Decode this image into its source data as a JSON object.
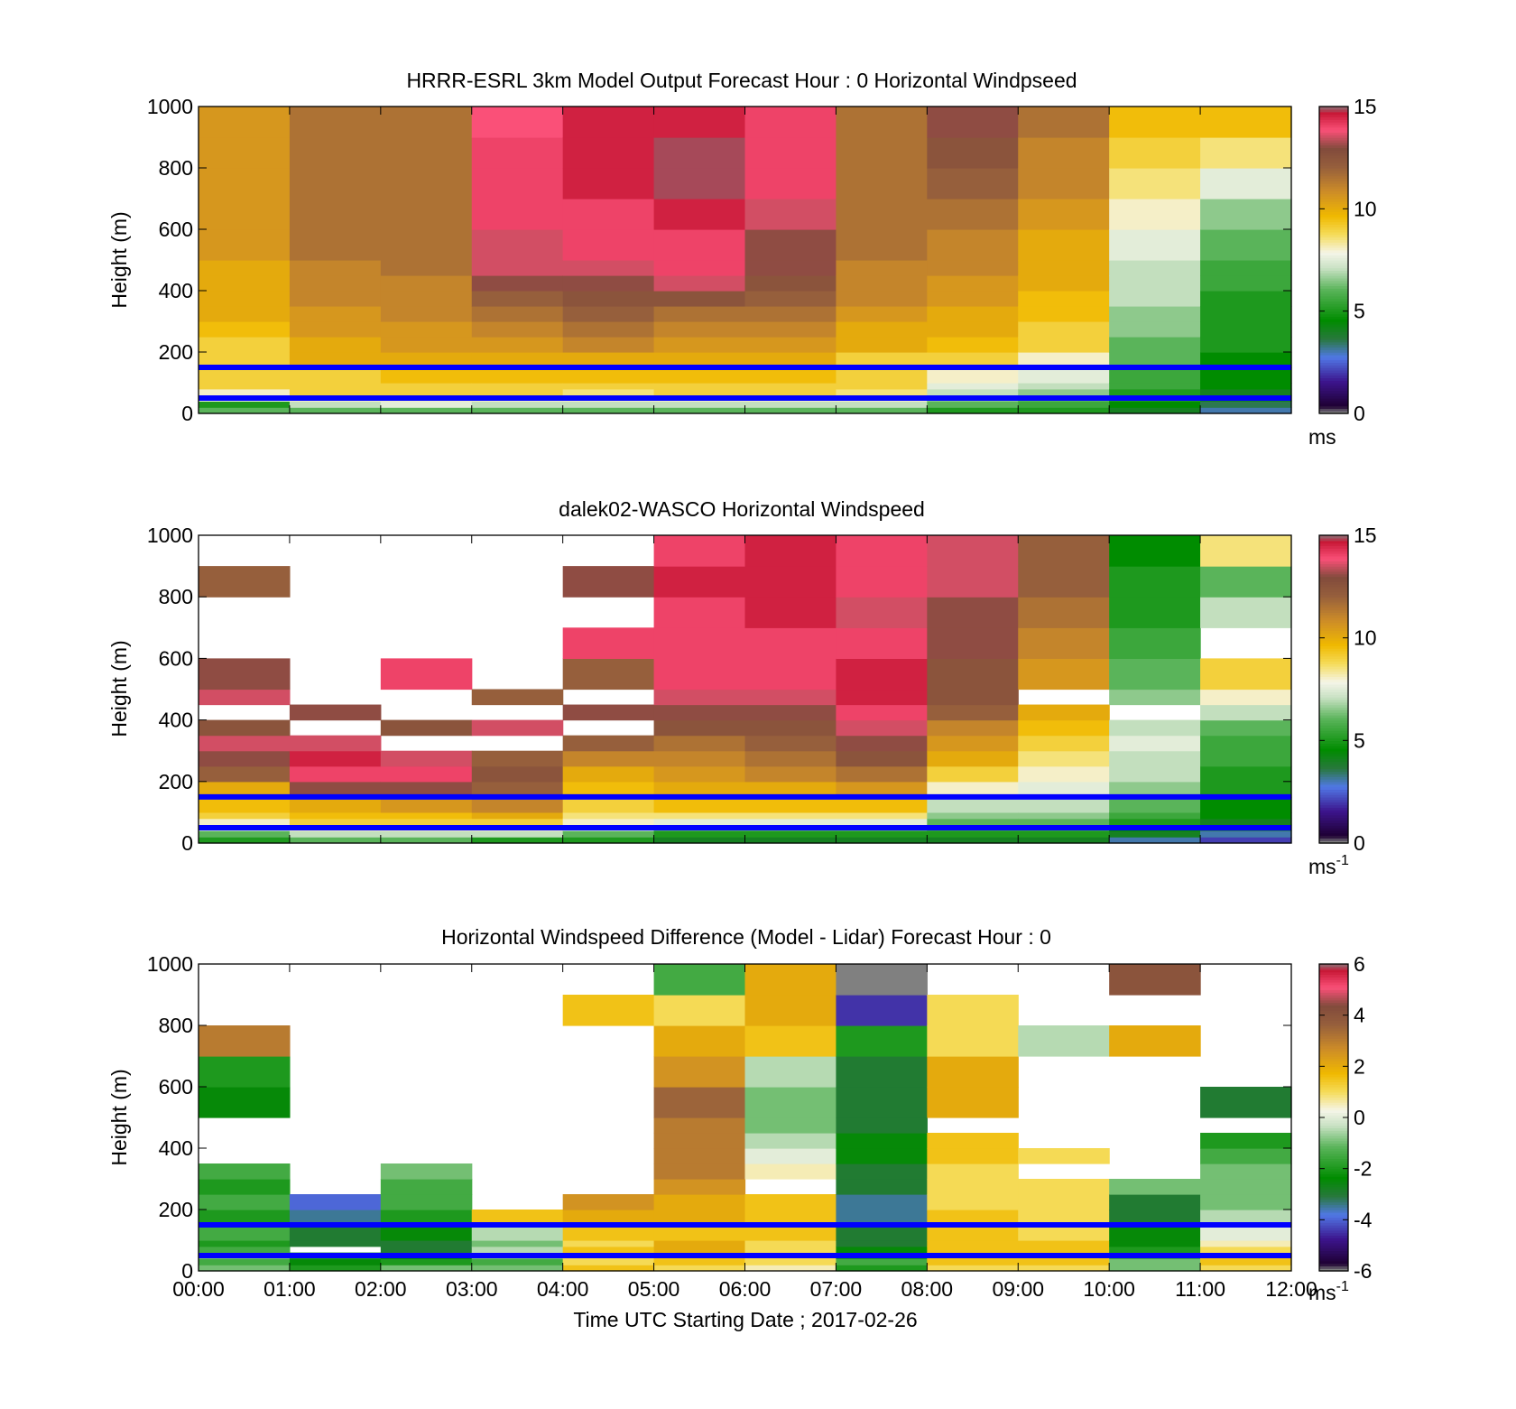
{
  "figure": {
    "xlabel": "Time UTC  Starting Date ; 2017-02-26",
    "x_ticks": [
      "00:00",
      "01:00",
      "02:00",
      "03:00",
      "04:00",
      "05:00",
      "06:00",
      "07:00",
      "08:00",
      "09:00",
      "10:00",
      "11:00",
      "12:00"
    ],
    "ylabel": "Height (m)",
    "y_ticks": [
      "0",
      "200",
      "400",
      "600",
      "800",
      "1000"
    ],
    "marker_line_color": "#0000ff"
  },
  "chart_data": [
    {
      "type": "heatmap",
      "title": "HRRR-ESRL 3km Model Output   Forecast Hour : 0 Horizontal Windpseed",
      "ylabel": "Height (m)",
      "xlim": [
        0,
        12
      ],
      "ylim": [
        0,
        1000
      ],
      "x_hours": [
        0,
        1,
        2,
        3,
        4,
        5,
        6,
        7,
        8,
        9,
        10,
        11
      ],
      "height_edges": [
        0,
        20,
        40,
        60,
        80,
        100,
        150,
        200,
        250,
        300,
        350,
        400,
        450,
        500,
        600,
        700,
        800,
        900,
        1000
      ],
      "values_by_hour": [
        [
          6,
          5,
          7.5,
          8,
          9,
          9,
          9,
          9,
          9.5,
          10,
          10,
          10,
          10,
          10.5,
          10.5,
          10.5,
          10.5,
          10.5
        ],
        [
          6,
          7,
          8,
          9,
          9,
          9,
          10,
          10,
          10.5,
          10.5,
          11,
          11,
          11,
          11.5,
          11.5,
          11.5,
          11.5,
          11.5
        ],
        [
          6,
          7.5,
          8,
          9,
          9,
          9.5,
          10,
          10.5,
          10.5,
          11,
          11,
          11,
          11.5,
          11.5,
          11.5,
          11.5,
          11.5,
          11.5
        ],
        [
          6,
          7,
          8,
          9,
          9,
          9.5,
          10,
          10.5,
          11,
          11.5,
          12,
          13,
          13.5,
          13.5,
          14,
          14,
          14,
          13.8
        ],
        [
          6,
          7,
          8,
          8.5,
          9,
          9.5,
          10,
          11,
          11.5,
          12,
          12.5,
          13,
          13.5,
          14,
          14,
          14.5,
          14.5,
          14.5
        ],
        [
          6,
          7,
          8,
          9,
          9,
          9.5,
          10,
          10.5,
          11,
          11.5,
          12.5,
          13.5,
          14,
          14,
          14.5,
          14.8,
          14.8,
          14.5
        ],
        [
          6,
          7,
          8,
          9,
          9,
          9.5,
          10,
          10.5,
          11,
          11.5,
          12,
          12.5,
          13,
          13,
          13.5,
          14,
          14,
          14
        ],
        [
          6,
          7,
          8,
          8.5,
          9,
          9,
          9,
          10,
          10,
          10.5,
          11,
          11,
          11,
          11.5,
          11.5,
          11.5,
          11.5,
          11.5
        ],
        [
          5,
          6,
          6.5,
          7,
          7.5,
          8,
          9,
          9.5,
          10,
          10,
          10.5,
          10.5,
          11,
          11,
          11.5,
          12,
          12.5,
          13
        ],
        [
          5,
          5.5,
          6,
          6.5,
          7,
          7.5,
          8,
          9,
          9,
          9.5,
          9.5,
          10,
          10,
          10,
          10.5,
          11,
          11,
          11.5
        ],
        [
          4,
          4.5,
          5,
          5,
          5.5,
          5.5,
          6,
          6,
          6.5,
          6.5,
          7,
          7,
          7,
          7.5,
          8,
          8.5,
          9,
          9.5
        ],
        [
          3,
          3.5,
          4,
          4,
          4.5,
          4.5,
          4.5,
          5,
          5,
          5,
          5,
          5.5,
          5.5,
          6,
          6.5,
          7.5,
          8.5,
          9.5
        ]
      ],
      "marker_lines_m": [
        50,
        150
      ],
      "colorbar": {
        "min": 0,
        "max": 15,
        "ticks": [
          "0",
          "5",
          "10",
          "15"
        ],
        "unit": "ms"
      }
    },
    {
      "type": "heatmap",
      "title": "dalek02-WASCO  Horizontal Windspeed",
      "ylabel": "Height (m)",
      "xlim": [
        0,
        12
      ],
      "ylim": [
        0,
        1000
      ],
      "x_hours": [
        0,
        1,
        2,
        3,
        4,
        5,
        6,
        7,
        8,
        9,
        10,
        11
      ],
      "height_edges": [
        0,
        20,
        40,
        60,
        80,
        100,
        150,
        200,
        250,
        300,
        350,
        400,
        450,
        500,
        600,
        700,
        800,
        900,
        1000
      ],
      "values_by_hour": [
        [
          5,
          6,
          7,
          8,
          9,
          9.5,
          10,
          12,
          13,
          13.5,
          12.5,
          null,
          13.5,
          13,
          null,
          null,
          12,
          null
        ],
        [
          6,
          7,
          8,
          9,
          9.5,
          10,
          13,
          14,
          14.5,
          13.5,
          null,
          13,
          null,
          null,
          null,
          null,
          null,
          null
        ],
        [
          6,
          7,
          8,
          9,
          9.5,
          10.5,
          13,
          14,
          13.5,
          null,
          12.5,
          null,
          null,
          14,
          null,
          null,
          null,
          null
        ],
        [
          5,
          7,
          8,
          9,
          10,
          11,
          12,
          12.5,
          12,
          null,
          13.5,
          null,
          12,
          null,
          null,
          null,
          null,
          null
        ],
        [
          5,
          6,
          7,
          8,
          8.5,
          9,
          9.5,
          10,
          11,
          12,
          null,
          13,
          null,
          12,
          14,
          null,
          13,
          null
        ],
        [
          4,
          5,
          6,
          7.5,
          8.5,
          9.5,
          10,
          10.5,
          11,
          11.5,
          12.5,
          13,
          13.5,
          14,
          14,
          14,
          14.5,
          14
        ],
        [
          4,
          5,
          6,
          7.5,
          8.5,
          9.5,
          10,
          11,
          11.5,
          12,
          12.5,
          13,
          13.5,
          14,
          14,
          14.5,
          14.5,
          14.5
        ],
        [
          4,
          5,
          6,
          7.5,
          8.5,
          9.5,
          10.5,
          11.5,
          12.5,
          13,
          13.5,
          14,
          14.5,
          14.5,
          14,
          13.5,
          14,
          14
        ],
        [
          4,
          5,
          5.5,
          6,
          6.5,
          7,
          8,
          9,
          10,
          10.5,
          11,
          12,
          12.5,
          12.5,
          13,
          13,
          13.5,
          13.5
        ],
        [
          4,
          5,
          5.5,
          6,
          6.5,
          7,
          7.5,
          8,
          8.5,
          9,
          9.5,
          10,
          null,
          10.5,
          11,
          11.5,
          12,
          12
        ],
        [
          3,
          4,
          4.5,
          5,
          5.5,
          6,
          6.5,
          7,
          7,
          7.5,
          7,
          null,
          6.5,
          6,
          5.5,
          5,
          5,
          4.5
        ],
        [
          2,
          3,
          3.5,
          4,
          4.5,
          4.5,
          5,
          5,
          5.5,
          5.5,
          6,
          7,
          8,
          9,
          null,
          7,
          6,
          8.5
        ]
      ],
      "marker_lines_m": [
        50,
        150
      ],
      "colorbar": {
        "min": 0,
        "max": 15,
        "ticks": [
          "0",
          "5",
          "10",
          "15"
        ],
        "unit": "ms",
        "unit_exponent": "-1"
      }
    },
    {
      "type": "heatmap",
      "title": "Horizontal Windspeed Difference (Model - Lidar) Forecast Hour : 0",
      "xlabel": "Time UTC  Starting Date ; 2017-02-26",
      "ylabel": "Height (m)",
      "xlim": [
        0,
        12
      ],
      "ylim": [
        0,
        1000
      ],
      "x_hours": [
        0,
        1,
        2,
        3,
        4,
        5,
        6,
        7,
        8,
        9,
        10,
        11
      ],
      "height_edges": [
        0,
        20,
        40,
        60,
        80,
        100,
        150,
        200,
        250,
        300,
        350,
        400,
        450,
        500,
        600,
        700,
        800,
        900,
        1000
      ],
      "values_by_hour": [
        [
          -1,
          -1.5,
          -1,
          -1.5,
          -2,
          -1.5,
          -2,
          -1.5,
          -2,
          -1.5,
          null,
          null,
          null,
          -2.5,
          -2,
          3,
          null,
          null
        ],
        [
          -2,
          -2.5,
          -2,
          null,
          -3,
          -3,
          -3.5,
          -4,
          null,
          null,
          null,
          null,
          null,
          null,
          null,
          null,
          null,
          null
        ],
        [
          -1,
          -2,
          -2.5,
          -3,
          -3,
          -2.5,
          -2,
          -1.5,
          -1.5,
          -1,
          null,
          null,
          null,
          null,
          null,
          null,
          null,
          null
        ],
        [
          -1,
          -1.5,
          -1,
          -0.5,
          -1,
          -0.5,
          1.5,
          null,
          null,
          null,
          null,
          null,
          null,
          null,
          null,
          null,
          null,
          null
        ],
        [
          1.5,
          1,
          1,
          1.5,
          1,
          1.5,
          2,
          2.5,
          null,
          null,
          null,
          null,
          null,
          null,
          null,
          null,
          1.5,
          null
        ],
        [
          1,
          1.5,
          1.5,
          2,
          2,
          1.5,
          2,
          2,
          2.5,
          3,
          3,
          3,
          3,
          3.5,
          2.5,
          2,
          1,
          -1.5
        ],
        [
          0.5,
          1,
          1,
          1,
          1,
          1.5,
          1.5,
          1.5,
          null,
          0.5,
          0,
          -0.5,
          -1,
          -1,
          -0.5,
          1.5,
          2,
          2
        ],
        [
          -2,
          -1.5,
          -2,
          -2.5,
          -3,
          -3,
          -3.5,
          -3.5,
          -3,
          -3,
          -2.5,
          -2.5,
          -3,
          -3,
          -3,
          -2,
          -4.5,
          -6
        ],
        [
          1,
          1.5,
          1.5,
          1.5,
          1.5,
          1.5,
          1.5,
          1,
          1,
          1,
          1.5,
          1.5,
          null,
          2,
          2,
          1,
          1,
          null
        ],
        [
          1,
          1.5,
          1.5,
          1.5,
          1.5,
          1,
          1,
          1,
          1,
          null,
          1,
          null,
          null,
          null,
          null,
          -0.5,
          null,
          null
        ],
        [
          -1,
          -1,
          -1.5,
          -2,
          -2.5,
          -2.5,
          -3,
          -3,
          -1,
          null,
          null,
          null,
          null,
          null,
          null,
          2,
          null,
          4
        ],
        [
          1,
          1.5,
          1.5,
          1,
          0.5,
          0,
          -0.5,
          -1,
          -1,
          -1,
          -1.5,
          -2,
          null,
          -3,
          null,
          null,
          null,
          null
        ]
      ],
      "marker_lines_m": [
        50,
        150
      ],
      "colorbar": {
        "min": -6,
        "max": 6,
        "ticks": [
          "-6",
          "-4",
          "-2",
          "0",
          "2",
          "4",
          "6"
        ],
        "unit": "ms",
        "unit_exponent": "-1"
      }
    }
  ]
}
